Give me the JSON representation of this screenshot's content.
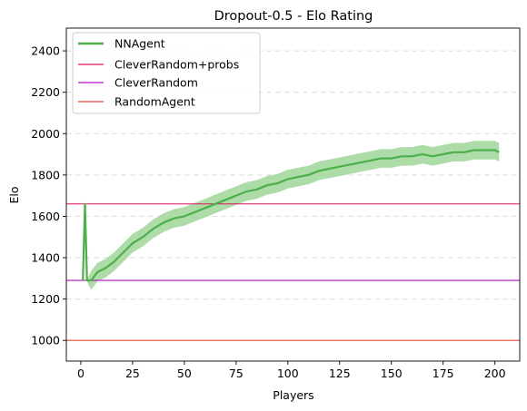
{
  "chart_data": {
    "type": "line",
    "title": "Dropout-0.5 - Elo Rating",
    "xlabel": "Players",
    "ylabel": "Elo",
    "xlim": [
      -7,
      212
    ],
    "ylim": [
      900,
      2510
    ],
    "x_ticks": [
      0,
      25,
      50,
      75,
      100,
      125,
      150,
      175,
      200
    ],
    "y_ticks": [
      1000,
      1200,
      1400,
      1600,
      1800,
      2000,
      2200,
      2400
    ],
    "grid": "y-dashed",
    "legend_position": "top-left",
    "series": [
      {
        "name": "NNAgent",
        "color": "#4daf4a",
        "band_color": "#a4d89f",
        "points": [
          [
            1,
            1290
          ],
          [
            2,
            1660
          ],
          [
            3,
            1290
          ],
          [
            5,
            1290
          ],
          [
            8,
            1330
          ],
          [
            12,
            1350
          ],
          [
            16,
            1380
          ],
          [
            20,
            1420
          ],
          [
            25,
            1470
          ],
          [
            30,
            1500
          ],
          [
            35,
            1540
          ],
          [
            40,
            1570
          ],
          [
            45,
            1590
          ],
          [
            50,
            1600
          ],
          [
            55,
            1620
          ],
          [
            60,
            1640
          ],
          [
            65,
            1660
          ],
          [
            70,
            1680
          ],
          [
            75,
            1700
          ],
          [
            80,
            1720
          ],
          [
            85,
            1730
          ],
          [
            90,
            1750
          ],
          [
            95,
            1760
          ],
          [
            100,
            1780
          ],
          [
            105,
            1790
          ],
          [
            110,
            1800
          ],
          [
            115,
            1820
          ],
          [
            120,
            1830
          ],
          [
            125,
            1840
          ],
          [
            130,
            1850
          ],
          [
            135,
            1860
          ],
          [
            140,
            1870
          ],
          [
            145,
            1880
          ],
          [
            150,
            1880
          ],
          [
            155,
            1890
          ],
          [
            160,
            1890
          ],
          [
            165,
            1900
          ],
          [
            170,
            1890
          ],
          [
            175,
            1900
          ],
          [
            180,
            1910
          ],
          [
            185,
            1910
          ],
          [
            190,
            1920
          ],
          [
            195,
            1920
          ],
          [
            200,
            1920
          ],
          [
            202,
            1910
          ]
        ],
        "band_halfwidth": 45
      },
      {
        "name": "CleverRandom+probs",
        "color": "#e0115f",
        "hline": 1660
      },
      {
        "name": "CleverRandom",
        "color": "#b010c0",
        "hline": 1290
      },
      {
        "name": "RandomAgent",
        "color": "#e8483a",
        "hline": 1000
      }
    ]
  }
}
